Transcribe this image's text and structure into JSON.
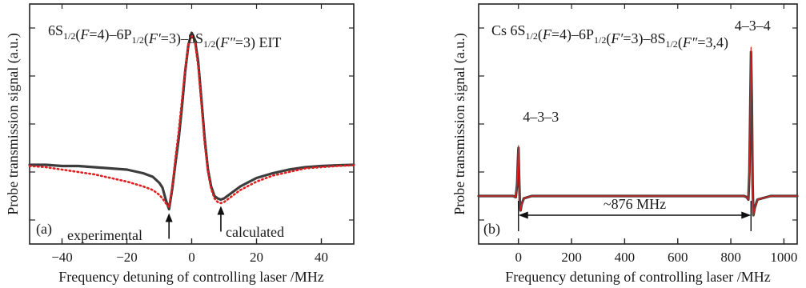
{
  "chart_data": [
    {
      "type": "line",
      "panel_label": "(a)",
      "title_main": "6S",
      "title_parts": [
        {
          "text": "6S",
          "sub": "1/2"
        },
        {
          "text": "(",
          "italic": false
        },
        {
          "text": "F",
          "italic": true
        },
        {
          "text": "=4)–6P",
          "sub": "1/2"
        },
        {
          "text": "(",
          "italic": false
        },
        {
          "text": "F′",
          "italic": true
        },
        {
          "text": "=3)–8S",
          "sub": "1/2"
        },
        {
          "text": "(",
          "italic": false
        },
        {
          "text": "F″",
          "italic": true
        },
        {
          "text": "=3) EIT"
        }
      ],
      "xlabel": "Frequency detuning of controlling laser /MHz",
      "ylabel": "Probe transmission signal (a.u.)",
      "xlim": [
        -50,
        50
      ],
      "ylim": [
        0,
        1
      ],
      "xticks": [
        -40,
        -20,
        0,
        20,
        40
      ],
      "xtick_labels": [
        "−40",
        "−20",
        "0",
        "20",
        "40"
      ],
      "yticks_unlabeled": [
        0.1,
        0.3,
        0.5,
        0.7,
        0.9
      ],
      "annotations": [
        {
          "text": "experimental",
          "arrow_x": -7,
          "arrow_y": 0.135
        },
        {
          "text": "calculated",
          "arrow_x": 9,
          "arrow_y": 0.165
        }
      ],
      "series": [
        {
          "color": "#3c3c3c",
          "style": "solid",
          "x": [
            -50,
            -45,
            -40,
            -35,
            -30,
            -25,
            -20,
            -15,
            -12,
            -10,
            -9,
            -8,
            -7,
            -6,
            -5,
            -4,
            -3,
            -2,
            -1,
            0,
            1,
            2,
            3,
            4,
            5,
            6,
            7,
            8,
            9,
            10,
            12,
            15,
            20,
            25,
            30,
            35,
            40,
            45,
            50
          ],
          "y": [
            0.33,
            0.33,
            0.325,
            0.325,
            0.32,
            0.315,
            0.31,
            0.295,
            0.28,
            0.255,
            0.235,
            0.185,
            0.145,
            0.23,
            0.34,
            0.44,
            0.57,
            0.72,
            0.83,
            0.88,
            0.85,
            0.76,
            0.6,
            0.44,
            0.31,
            0.24,
            0.2,
            0.19,
            0.185,
            0.19,
            0.21,
            0.24,
            0.275,
            0.295,
            0.31,
            0.32,
            0.325,
            0.328,
            0.33
          ]
        },
        {
          "color": "#e02020",
          "style": "dotted",
          "x": [
            -50,
            -45,
            -40,
            -35,
            -30,
            -25,
            -20,
            -15,
            -12,
            -10,
            -9,
            -8,
            -7,
            -6,
            -5,
            -4,
            -3,
            -2,
            -1,
            0,
            1,
            2,
            3,
            4,
            5,
            6,
            7,
            8,
            9,
            10,
            12,
            15,
            20,
            25,
            30,
            35,
            40,
            45,
            50
          ],
          "y": [
            0.325,
            0.32,
            0.31,
            0.3,
            0.29,
            0.275,
            0.26,
            0.24,
            0.225,
            0.205,
            0.19,
            0.17,
            0.155,
            0.24,
            0.36,
            0.47,
            0.6,
            0.73,
            0.83,
            0.87,
            0.84,
            0.74,
            0.58,
            0.42,
            0.3,
            0.23,
            0.19,
            0.175,
            0.17,
            0.175,
            0.195,
            0.225,
            0.26,
            0.285,
            0.3,
            0.315,
            0.32,
            0.325,
            0.328
          ]
        }
      ]
    },
    {
      "type": "line",
      "panel_label": "(b)",
      "title_parts": [
        {
          "text": "Cs 6S",
          "sub": "1/2"
        },
        {
          "text": "("
        },
        {
          "text": "F",
          "italic": true
        },
        {
          "text": "=4)–6P",
          "sub": "1/2"
        },
        {
          "text": "("
        },
        {
          "text": "F′",
          "italic": true
        },
        {
          "text": "=3)–8S",
          "sub": "1/2"
        },
        {
          "text": "("
        },
        {
          "text": "F″",
          "italic": true
        },
        {
          "text": "=3,4)"
        }
      ],
      "xlabel": "Frequency detuning of controlling laser /MHz",
      "ylabel": "Probe transmission signal (a.u.)",
      "xlim": [
        -150,
        1050
      ],
      "ylim": [
        0,
        1
      ],
      "xticks": [
        0,
        200,
        400,
        600,
        800,
        1000
      ],
      "xtick_labels": [
        "0",
        "200",
        "400",
        "600",
        "800",
        "1000"
      ],
      "yticks_unlabeled": [
        0.1,
        0.3,
        0.5,
        0.7,
        0.9
      ],
      "peak_labels": [
        {
          "text": "4–3–3",
          "x": 0,
          "y": 0.47
        },
        {
          "text": "4–3–4",
          "x": 876,
          "y": 0.85
        }
      ],
      "span_annotation": {
        "text": "~876 MHz",
        "x_start": 0,
        "x_end": 876,
        "y": 0.12
      },
      "series": [
        {
          "color": "#3c3c3c",
          "style": "solid",
          "x": [
            -150,
            -100,
            -50,
            -20,
            -10,
            -5,
            -2,
            0,
            2,
            5,
            8,
            12,
            20,
            50,
            100,
            200,
            300,
            400,
            500,
            600,
            700,
            800,
            850,
            860,
            866,
            870,
            873,
            876,
            879,
            882,
            885,
            890,
            900,
            950,
            1000,
            1050
          ],
          "y": [
            0.2,
            0.2,
            0.2,
            0.2,
            0.195,
            0.25,
            0.35,
            0.4,
            0.3,
            0.18,
            0.14,
            0.165,
            0.19,
            0.2,
            0.2,
            0.2,
            0.2,
            0.2,
            0.2,
            0.2,
            0.2,
            0.2,
            0.2,
            0.195,
            0.185,
            0.3,
            0.55,
            0.8,
            0.6,
            0.25,
            0.12,
            0.15,
            0.185,
            0.2,
            0.2,
            0.2
          ]
        },
        {
          "color": "#e02020",
          "style": "solid",
          "x": [
            -150,
            -100,
            -50,
            -20,
            -10,
            -5,
            -2,
            0,
            2,
            5,
            8,
            12,
            20,
            50,
            100,
            200,
            300,
            400,
            500,
            600,
            700,
            800,
            850,
            860,
            866,
            870,
            873,
            876,
            879,
            882,
            885,
            890,
            900,
            950,
            1000,
            1050
          ],
          "y": [
            0.2,
            0.2,
            0.2,
            0.2,
            0.195,
            0.25,
            0.35,
            0.41,
            0.3,
            0.18,
            0.14,
            0.165,
            0.19,
            0.2,
            0.2,
            0.2,
            0.2,
            0.2,
            0.2,
            0.2,
            0.2,
            0.2,
            0.2,
            0.195,
            0.185,
            0.3,
            0.56,
            0.82,
            0.6,
            0.25,
            0.12,
            0.15,
            0.185,
            0.2,
            0.2,
            0.2
          ]
        }
      ]
    }
  ]
}
